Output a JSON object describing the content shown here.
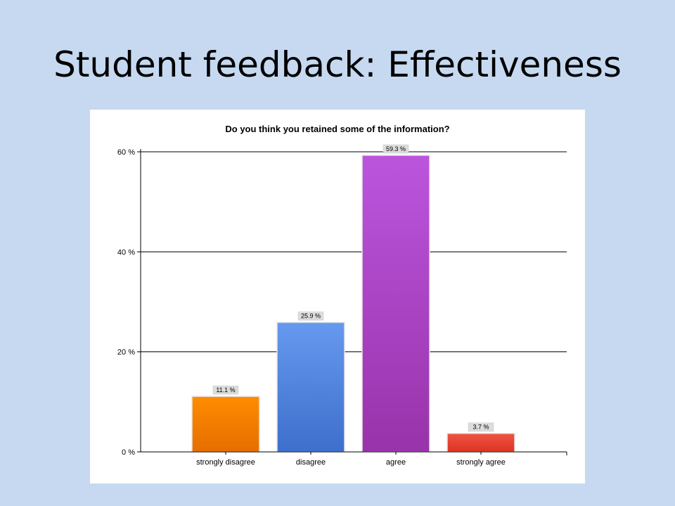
{
  "slide": {
    "title": "Student feedback: Effectiveness"
  },
  "chart_data": {
    "type": "bar",
    "title": "Do you think you retained some of the information?",
    "categories": [
      "strongly disagree",
      "disagree",
      "agree",
      "strongly agree"
    ],
    "values": [
      11.1,
      25.9,
      59.3,
      3.7
    ],
    "value_labels": [
      "11.1 %",
      "25.9 %",
      "59.3 %",
      "3.7 %"
    ],
    "colors_top": [
      "#ff8c00",
      "#6699ee",
      "#bb55dd",
      "#ee5544"
    ],
    "colors_bottom": [
      "#e66e00",
      "#3d6fcc",
      "#9933aa",
      "#dd3322"
    ],
    "ylim": [
      0,
      60
    ],
    "yticks": [
      0,
      20,
      40,
      60
    ],
    "ytick_labels": [
      "0 %",
      "20 %",
      "40 %",
      "60 %"
    ],
    "grid": true,
    "legend": "none",
    "xlabel": "",
    "ylabel": ""
  }
}
